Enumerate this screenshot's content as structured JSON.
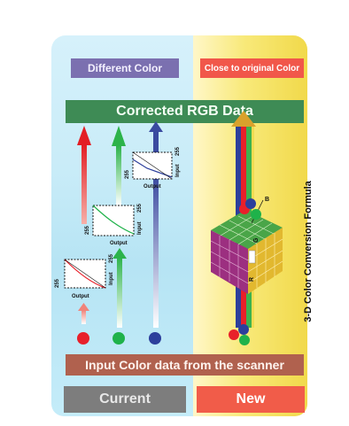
{
  "labels": {
    "different_color": "Different Color",
    "close_to_original": "Close to original Color",
    "corrected_rgb": "Corrected RGB Data",
    "input_color_data": "Input Color data from the scanner",
    "current": "Current",
    "new": "New",
    "formula": "3-D Color Conversion Formula"
  },
  "curves": [
    {
      "output": "Output",
      "input": "Input",
      "max_left": "255",
      "max_right": "255"
    },
    {
      "output": "Output",
      "input": "Input",
      "max_left": "255",
      "max_right": "255"
    },
    {
      "output": "Output",
      "input": "Input",
      "max_left": "255",
      "max_right": "255"
    }
  ],
  "cube_axes": {
    "r": "R",
    "g": "G",
    "b": "B"
  },
  "colors": {
    "red": "#e8202a",
    "green": "#1fb24a",
    "blue": "#2c3f9c",
    "panel_left": "#b6e4f4",
    "panel_right": "#f3dc52"
  }
}
